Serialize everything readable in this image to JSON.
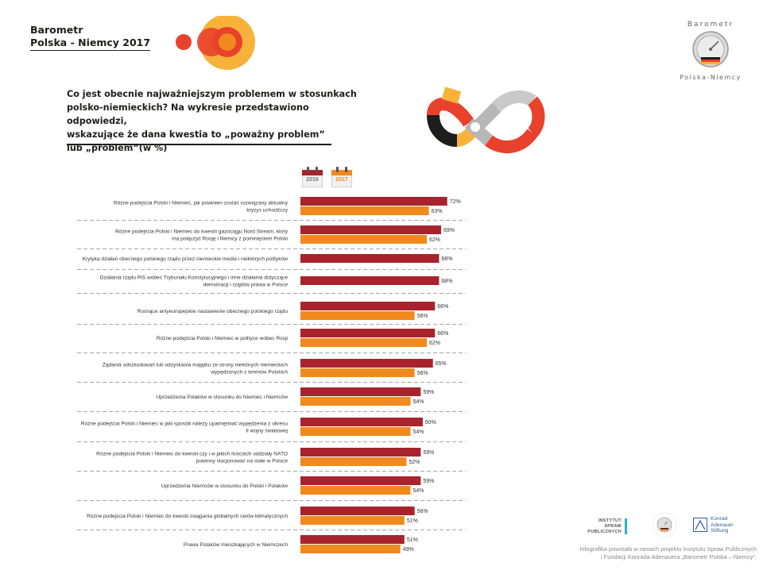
{
  "brand": {
    "line1": "Barometr",
    "line2": "Polska - Niemcy 2017"
  },
  "question": {
    "line1": "Co jest obecnie najważniejszym problemem w stosunkach",
    "line2": "polsko-niemieckich? Na wykresie przedstawiono odpowiedzi,",
    "line3": "wskazujące że dana kwestia to „poważny problem”",
    "line4": "lub „problem”(w %)"
  },
  "legend": {
    "series_2016": "2016",
    "series_2017": "2017"
  },
  "colors": {
    "series_2016": "#a8232b",
    "series_2017": "#f18a1e",
    "accent_red": "#e8412c",
    "accent_yellow": "#f7b23b",
    "grey": "#b7b7b7"
  },
  "chart_data": {
    "type": "bar",
    "orientation": "horizontal",
    "title": "Co jest obecnie najważniejszym problemem w stosunkach polsko-niemieckich?",
    "unit": "%",
    "xlim": [
      0,
      100
    ],
    "series_names": [
      "2016",
      "2017"
    ],
    "categories": [
      {
        "line1": "Różne podejścia Polski i Niemiec, jak powinien zostać rozwiązany aktualny",
        "line2": "kryzys uchodźczy",
        "v2016": 72,
        "v2017": 63
      },
      {
        "line1": "Różne podejścia Polski i Niemiec do kwestii gazociągu Nord Stream, który",
        "line2": "ma połączyć Rosję i Niemcy z pominięciem Polski",
        "v2016": 69,
        "v2017": 62
      },
      {
        "line1": "Krytyka działań obecnego polskiego rządu przez niemieckie media i niektórych polityków",
        "line2": "",
        "v2016": 68,
        "v2017": null
      },
      {
        "line1": "Działania rządu PiS wobec Trybunału Konstytucyjnego i inne działania dotyczące",
        "line2": "demokracji i rządów prawa w Polsce",
        "v2016": 68,
        "v2017": null
      },
      {
        "line1": "Rosnące antyeuropejskie nastawienie obecnego polskiego rządu",
        "line2": "",
        "v2016": 66,
        "v2017": 56
      },
      {
        "line1": "Różne podejścia Polski i Niemiec w polityce wobec Rosji",
        "line2": "",
        "v2016": 66,
        "v2017": 62
      },
      {
        "line1": "Żądania odszkodowań lub odzyskania majątku ze strony niektórych niemieckich",
        "line2": "wypędzonych z terenów Polskich",
        "v2016": 65,
        "v2017": 56
      },
      {
        "line1": "Uprzedzenia Polaków w stosunku do Niemiec i Niemców",
        "line2": "",
        "v2016": 59,
        "v2017": 54
      },
      {
        "line1": "Różne podejścia Polski i Niemiec w jaki sposób należy upamiętniać wypędzenia z okresu",
        "line2": "II wojny światowej",
        "v2016": 60,
        "v2017": 54
      },
      {
        "line1": "Różne podejścia Polski i Niemiec do kwestii czy i w jakich ilościach oddziały NATO",
        "line2": "powinny stacjonować na stałe w Polsce",
        "v2016": 59,
        "v2017": 52
      },
      {
        "line1": "Uprzedzenia Niemców w stosunku do Polski i Polaków",
        "line2": "",
        "v2016": 59,
        "v2017": 54
      },
      {
        "line1": "Różne podejścia Polski i Niemiec do kwestii osiągania globalnych celów klimatycznych",
        "line2": "",
        "v2016": 56,
        "v2017": 51
      },
      {
        "line1": "Prawa Polaków mieszkających w Niemczech",
        "line2": "",
        "v2016": 51,
        "v2017": 49
      }
    ]
  },
  "logos": {
    "isp_line1": "INSTYTUT SPRAW",
    "isp_line2": "PUBLICZNYCH",
    "kas_line1": "Konrad",
    "kas_line2": "Adenauer",
    "kas_line3": "Stiftung"
  },
  "footer": {
    "line1": "Infografika powstała w ramach projektu Instytutu Spraw Publicznych",
    "line2": "i Fundacji Konrada Adenauera „Barometr Polska – Niemcy”."
  }
}
